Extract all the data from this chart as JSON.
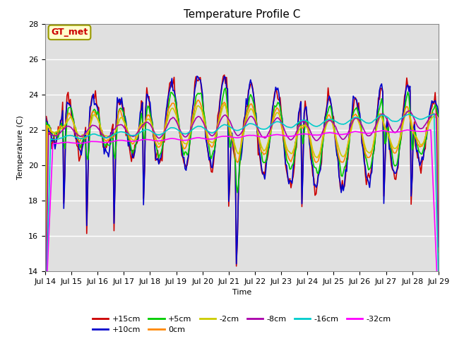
{
  "title": "Temperature Profile C",
  "xlabel": "Time",
  "ylabel": "Temperature (C)",
  "ylim": [
    14,
    28
  ],
  "xlim": [
    0,
    360
  ],
  "xtick_labels": [
    "Jul 14",
    "Jul 15",
    "Jul 16",
    "Jul 17",
    "Jul 18",
    "Jul 19",
    "Jul 20",
    "Jul 21",
    "Jul 22",
    "Jul 23",
    "Jul 24",
    "Jul 25",
    "Jul 26",
    "Jul 27",
    "Jul 28",
    "Jul 29"
  ],
  "xtick_positions": [
    0,
    24,
    48,
    72,
    96,
    120,
    144,
    168,
    192,
    216,
    240,
    264,
    288,
    312,
    336,
    360
  ],
  "series_labels": [
    "+15cm",
    "+10cm",
    "+5cm",
    "0cm",
    "-2cm",
    "-8cm",
    "-16cm",
    "-32cm"
  ],
  "series_colors": [
    "#cc0000",
    "#0000cc",
    "#00cc00",
    "#ff8800",
    "#cccc00",
    "#aa00aa",
    "#00cccc",
    "#ff00ff"
  ],
  "annotation_text": "GT_met",
  "annotation_color": "#cc0000",
  "annotation_bg": "#ffffcc",
  "annotation_border": "#999900",
  "bg_color": "#e0e0e0",
  "title_fontsize": 11,
  "axis_fontsize": 8,
  "legend_fontsize": 8
}
